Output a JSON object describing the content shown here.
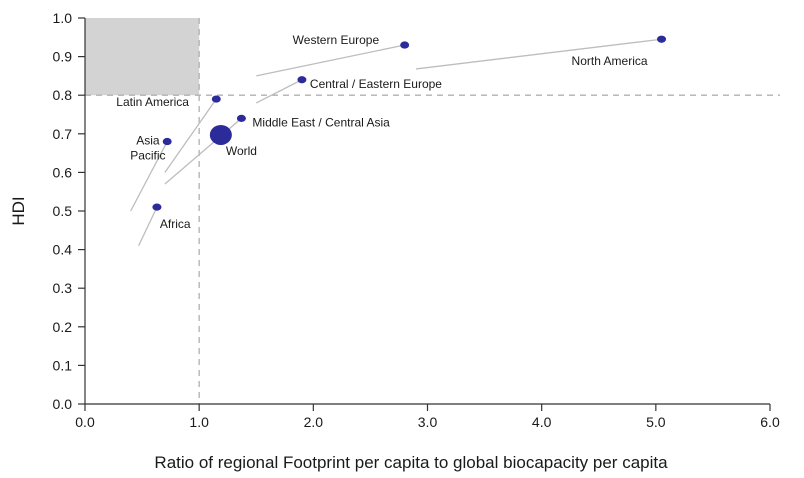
{
  "chart_data": {
    "type": "scatter",
    "title": "",
    "xlabel": "Ratio of regional Footprint per capita to global biocapacity per capita",
    "ylabel": "HDI",
    "xlim": [
      0.0,
      6.0
    ],
    "ylim": [
      0.0,
      1.0
    ],
    "x_ticks": [
      "0.0",
      "1.0",
      "2.0",
      "3.0",
      "4.0",
      "5.0",
      "6.0"
    ],
    "y_ticks": [
      "0.0",
      "0.1",
      "0.2",
      "0.3",
      "0.4",
      "0.5",
      "0.6",
      "0.7",
      "0.8",
      "0.9",
      "1.0"
    ],
    "grid": false,
    "reference_lines": {
      "x": 1.0,
      "y": 0.8
    },
    "shaded_region": {
      "x": [
        0.0,
        1.0
      ],
      "y": [
        0.8,
        1.0
      ]
    },
    "point_color": "#2b2b9a",
    "trend_color": "#bdbdbd",
    "shade_color": "#d3d3d3",
    "points": [
      {
        "label": "North America",
        "x": 5.05,
        "y": 0.945,
        "size": "small",
        "trend": [
          [
            2.9,
            0.868
          ],
          [
            5.05,
            0.945
          ]
        ]
      },
      {
        "label": "Western Europe",
        "x": 2.8,
        "y": 0.93,
        "size": "small",
        "trend": [
          [
            1.5,
            0.85
          ],
          [
            2.8,
            0.93
          ]
        ]
      },
      {
        "label": "Central / Eastern Europe",
        "x": 1.9,
        "y": 0.84,
        "size": "small",
        "trend": [
          [
            1.5,
            0.78
          ],
          [
            1.9,
            0.84
          ]
        ]
      },
      {
        "label": "Latin America",
        "x": 1.15,
        "y": 0.79,
        "size": "small",
        "trend": [
          [
            0.7,
            0.6
          ],
          [
            1.15,
            0.79
          ]
        ]
      },
      {
        "label": "Middle East /  Central Asia",
        "x": 1.37,
        "y": 0.74,
        "size": "small",
        "trend": [
          [
            0.7,
            0.57
          ],
          [
            1.37,
            0.74
          ]
        ]
      },
      {
        "label": "World",
        "x": 1.19,
        "y": 0.697,
        "size": "large",
        "trend": []
      },
      {
        "label": "Asia Pacific",
        "x": 0.72,
        "y": 0.68,
        "size": "small",
        "trend": [
          [
            0.4,
            0.5
          ],
          [
            0.72,
            0.68
          ]
        ]
      },
      {
        "label": "Africa",
        "x": 0.63,
        "y": 0.51,
        "size": "small",
        "trend": [
          [
            0.47,
            0.41
          ],
          [
            0.63,
            0.51
          ]
        ]
      }
    ]
  }
}
